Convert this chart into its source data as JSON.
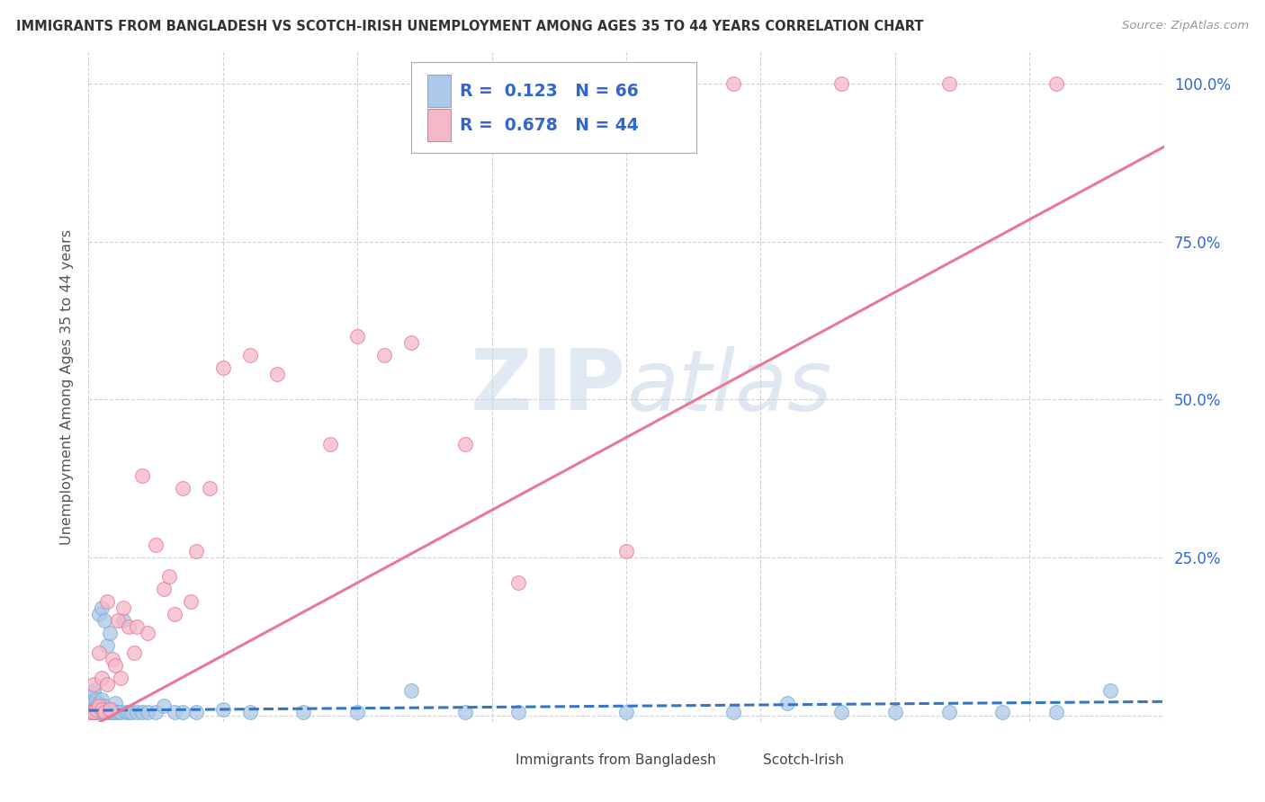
{
  "title": "IMMIGRANTS FROM BANGLADESH VS SCOTCH-IRISH UNEMPLOYMENT AMONG AGES 35 TO 44 YEARS CORRELATION CHART",
  "source": "Source: ZipAtlas.com",
  "ylabel": "Unemployment Among Ages 35 to 44 years",
  "xlim": [
    0,
    0.4
  ],
  "ylim": [
    -0.01,
    1.05
  ],
  "background_color": "#ffffff",
  "grid_color": "#cccccc",
  "series1_color": "#adc8e8",
  "series1_edge": "#7aafd4",
  "series1_line_color": "#3575c8",
  "series2_color": "#f5b8c8",
  "series2_edge": "#e87898",
  "series2_line_color": "#e87898",
  "axis_label_color": "#3366cc",
  "legend_text_color": "#3366cc",
  "watermark_color": "#c8d8ec",
  "series1_r": 0.123,
  "series1_n": 66,
  "series2_r": 0.678,
  "series2_n": 44,
  "bangladesh_x": [
    0.001,
    0.001,
    0.001,
    0.001,
    0.001,
    0.001,
    0.002,
    0.002,
    0.002,
    0.002,
    0.002,
    0.002,
    0.003,
    0.003,
    0.003,
    0.003,
    0.003,
    0.004,
    0.004,
    0.004,
    0.004,
    0.005,
    0.005,
    0.005,
    0.005,
    0.006,
    0.006,
    0.006,
    0.007,
    0.007,
    0.008,
    0.008,
    0.009,
    0.009,
    0.01,
    0.01,
    0.011,
    0.012,
    0.013,
    0.014,
    0.015,
    0.016,
    0.018,
    0.02,
    0.022,
    0.025,
    0.028,
    0.032,
    0.035,
    0.04,
    0.05,
    0.06,
    0.08,
    0.1,
    0.12,
    0.14,
    0.16,
    0.2,
    0.24,
    0.26,
    0.28,
    0.3,
    0.32,
    0.34,
    0.36,
    0.38
  ],
  "bangladesh_y": [
    0.005,
    0.01,
    0.02,
    0.03,
    0.005,
    0.015,
    0.005,
    0.01,
    0.025,
    0.035,
    0.005,
    0.04,
    0.005,
    0.01,
    0.015,
    0.025,
    0.005,
    0.005,
    0.01,
    0.02,
    0.16,
    0.005,
    0.015,
    0.025,
    0.17,
    0.005,
    0.015,
    0.15,
    0.005,
    0.11,
    0.005,
    0.13,
    0.005,
    0.01,
    0.005,
    0.02,
    0.005,
    0.005,
    0.15,
    0.005,
    0.005,
    0.005,
    0.005,
    0.005,
    0.005,
    0.005,
    0.015,
    0.005,
    0.005,
    0.005,
    0.01,
    0.005,
    0.005,
    0.005,
    0.04,
    0.005,
    0.005,
    0.005,
    0.005,
    0.02,
    0.005,
    0.005,
    0.005,
    0.005,
    0.005,
    0.04
  ],
  "scotchirish_x": [
    0.001,
    0.002,
    0.002,
    0.003,
    0.004,
    0.004,
    0.005,
    0.005,
    0.006,
    0.007,
    0.007,
    0.008,
    0.009,
    0.01,
    0.011,
    0.012,
    0.013,
    0.015,
    0.017,
    0.018,
    0.02,
    0.022,
    0.025,
    0.028,
    0.03,
    0.032,
    0.035,
    0.038,
    0.04,
    0.045,
    0.05,
    0.06,
    0.07,
    0.09,
    0.1,
    0.11,
    0.12,
    0.14,
    0.16,
    0.2,
    0.24,
    0.28,
    0.32,
    0.36
  ],
  "scotchirish_y": [
    0.005,
    0.05,
    0.005,
    0.01,
    0.015,
    0.1,
    0.01,
    0.06,
    0.005,
    0.05,
    0.18,
    0.01,
    0.09,
    0.08,
    0.15,
    0.06,
    0.17,
    0.14,
    0.1,
    0.14,
    0.38,
    0.13,
    0.27,
    0.2,
    0.22,
    0.16,
    0.36,
    0.18,
    0.26,
    0.36,
    0.55,
    0.57,
    0.54,
    0.43,
    0.6,
    0.57,
    0.59,
    0.43,
    0.21,
    0.26,
    1.0,
    1.0,
    1.0,
    1.0
  ],
  "trend1_x": [
    0.0,
    0.4
  ],
  "trend1_y": [
    0.008,
    0.022
  ],
  "trend2_x": [
    0.0,
    0.4
  ],
  "trend2_y": [
    -0.02,
    0.9
  ]
}
